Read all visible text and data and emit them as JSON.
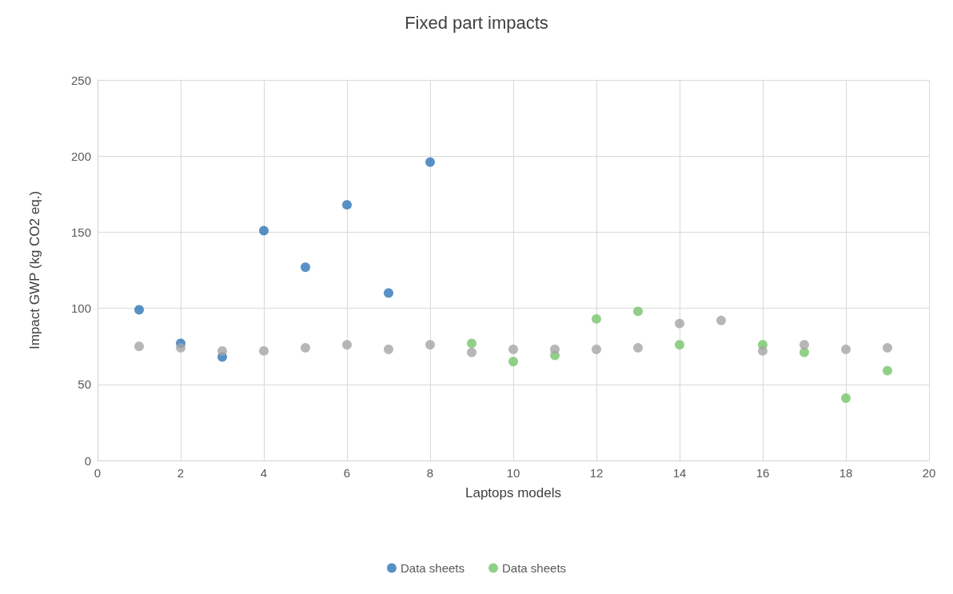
{
  "chart_data": {
    "type": "scatter",
    "title": "Fixed part impacts",
    "xlabel": "Laptops models",
    "ylabel": "Impact GWP (kg CO2 eq.)",
    "xlim": [
      0,
      20
    ],
    "xticks": [
      0,
      2,
      4,
      6,
      8,
      10,
      12,
      14,
      16,
      18,
      20
    ],
    "ylim": [
      0,
      250
    ],
    "yticks": [
      0,
      50,
      100,
      150,
      200,
      250
    ],
    "grid": true,
    "legend": "bottom",
    "marker": "circle",
    "series": [
      {
        "name": "Data sheets",
        "color": "#2e75b6",
        "x": [
          1,
          2,
          3,
          4,
          5,
          6,
          7,
          8
        ],
        "values": [
          99,
          77,
          68,
          151,
          127,
          168,
          110,
          196
        ]
      },
      {
        "name": "Data sheets",
        "color": "#77c46b",
        "x": [
          9,
          10,
          11,
          12,
          13,
          14,
          15,
          16,
          17,
          18,
          19
        ],
        "values": [
          77,
          65,
          69,
          93,
          98,
          76,
          null,
          76,
          71,
          41,
          59
        ]
      },
      {
        "color": "#a5a5a5",
        "x": [
          1,
          2,
          3,
          4,
          5,
          6,
          7,
          8,
          9,
          10,
          11,
          12,
          13,
          14,
          15,
          16,
          17,
          18,
          19
        ],
        "values": [
          75,
          74,
          72,
          72,
          74,
          76,
          73,
          76,
          71,
          73,
          73,
          73,
          74,
          90,
          92,
          72,
          76,
          73,
          74
        ]
      }
    ]
  }
}
